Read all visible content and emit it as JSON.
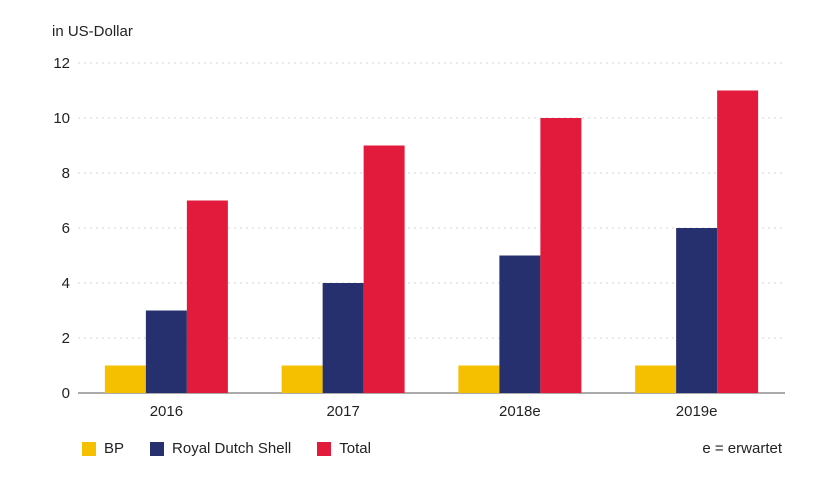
{
  "chart_data": {
    "type": "bar",
    "ylabel": "in US-Dollar",
    "ylim": [
      0,
      12
    ],
    "yticks": [
      0,
      2,
      4,
      6,
      8,
      10,
      12
    ],
    "categories": [
      "2016",
      "2017",
      "2018e",
      "2019e"
    ],
    "series": [
      {
        "name": "BP",
        "color": "#f5c000",
        "values": [
          1,
          1,
          1,
          1
        ]
      },
      {
        "name": "Royal Dutch Shell",
        "color": "#27306e",
        "values": [
          3,
          4,
          5,
          6
        ]
      },
      {
        "name": "Total",
        "color": "#e21b3c",
        "values": [
          7,
          9,
          10,
          11
        ]
      }
    ],
    "grid": true,
    "legend_position": "bottom-left"
  },
  "note": "e = erwartet"
}
